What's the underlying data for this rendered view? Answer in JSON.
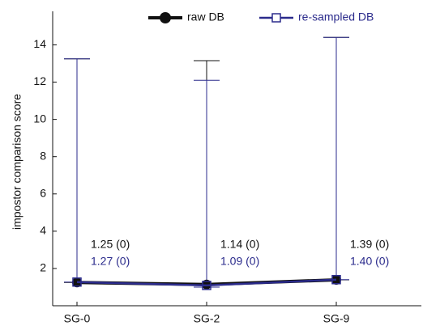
{
  "chart_data": {
    "type": "line",
    "ylabel": "impostor comparison score",
    "categories": [
      "SG-0",
      "SG-2",
      "SG-9"
    ],
    "ylim": [
      0,
      15.8
    ],
    "yticks": [
      2,
      4,
      6,
      8,
      10,
      12,
      14
    ],
    "series": [
      {
        "name": "raw DB",
        "color": "#111111",
        "marker": "circle",
        "values": [
          1.25,
          1.14,
          1.39
        ],
        "value_labels": [
          "1.25 (0)",
          "1.14 (0)",
          "1.39 (0)"
        ],
        "upper": [
          13.25,
          13.15,
          14.4
        ],
        "lower": [
          1.25,
          1.0,
          1.39
        ]
      },
      {
        "name": "re-sampled DB",
        "color": "#2b2b8c",
        "marker": "square",
        "values": [
          1.27,
          1.09,
          1.4
        ],
        "value_labels": [
          "1.27 (0)",
          "1.09 (0)",
          "1.40 (0)"
        ],
        "upper": [
          13.25,
          12.1,
          14.4
        ],
        "lower": [
          1.27,
          1.0,
          1.4
        ]
      }
    ]
  }
}
